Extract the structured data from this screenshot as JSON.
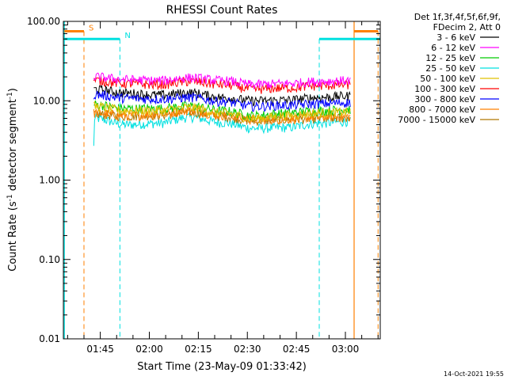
{
  "chart_data": {
    "type": "line",
    "title": "RHESSI Count Rates",
    "xlabel": "Start Time (23-May-09 01:33:42)",
    "ylabel_main": "Count Rate (s",
    "ylabel_sup1": "-1",
    "ylabel_mid": " detector segment",
    "ylabel_sup2": "-1",
    "ylabel_end": ")",
    "y_scale": "log",
    "ylim": [
      0.01,
      100
    ],
    "xlim": [
      "01:33:42",
      "03:10:40"
    ],
    "x_ticks": [
      "01:45",
      "02:00",
      "02:15",
      "02:30",
      "02:45",
      "03:00"
    ],
    "y_ticks": [
      "0.01",
      "0.10",
      "1.00",
      "10.00",
      "100.00"
    ],
    "legend_header": [
      "Det 1f,3f,4f,5f,6f,9f,",
      "FDecim 2, Att 0"
    ],
    "data_start": "01:43:00",
    "data_end": "03:01:30",
    "series": [
      {
        "name": "3 - 6 keV",
        "color": "#000000",
        "values": [
          14.0,
          12.5,
          11.8,
          12.6,
          11.0,
          10.0,
          10.2,
          11.0,
          11.5
        ]
      },
      {
        "name": "6 - 12 keV",
        "color": "#ff00ff",
        "values": [
          20.0,
          18.5,
          18.0,
          19.5,
          18.0,
          16.0,
          16.5,
          17.5,
          18.0
        ]
      },
      {
        "name": "12 - 25 keV",
        "color": "#00cc00",
        "values": [
          9.0,
          8.0,
          8.0,
          8.6,
          7.5,
          6.5,
          7.0,
          7.5,
          7.8
        ]
      },
      {
        "name": "25 - 50 keV",
        "color": "#00e0e0",
        "values": [
          6.0,
          5.0,
          5.2,
          6.2,
          5.3,
          4.5,
          4.6,
          5.2,
          5.5
        ]
      },
      {
        "name": "50 - 100 keV",
        "color": "#e0c000",
        "values": [
          8.5,
          7.5,
          7.5,
          8.2,
          7.0,
          6.0,
          6.5,
          7.0,
          7.2
        ]
      },
      {
        "name": "100 - 300 keV",
        "color": "#ff0000",
        "values": [
          18.0,
          16.5,
          16.0,
          17.5,
          16.0,
          14.0,
          14.5,
          15.5,
          16.0
        ]
      },
      {
        "name": "300 - 800 keV",
        "color": "#0000ff",
        "values": [
          12.0,
          10.8,
          10.5,
          11.0,
          9.8,
          8.5,
          8.8,
          9.2,
          9.5
        ]
      },
      {
        "name": "800 - 7000 keV",
        "color": "#ff8000",
        "values": [
          7.0,
          6.5,
          6.8,
          7.5,
          6.6,
          5.8,
          5.9,
          6.2,
          6.3
        ]
      },
      {
        "name": "7000 - 15000 keV",
        "color": "#b07800",
        "values": [
          6.8,
          6.4,
          6.6,
          7.2,
          6.4,
          5.6,
          5.8,
          6.0,
          6.1
        ]
      }
    ],
    "annotations": [
      {
        "label": "S",
        "color": "#ff8000",
        "level": 75,
        "bar_start": "01:34:00",
        "bar_end": "01:40:00",
        "marker": "01:40:00"
      },
      {
        "label": "N",
        "color": "#00e0e0",
        "level": 60,
        "bar_start": "01:34:00",
        "bar_end": "01:51:00",
        "marker": "01:51:00"
      },
      {
        "label": "",
        "color": "#00e0e0",
        "level": 60,
        "bar_start": "02:52:00",
        "bar_end": "03:10:40",
        "marker": "02:52:00"
      },
      {
        "label": "",
        "color": "#ff8000",
        "level": 75,
        "bar_start": "03:02:40",
        "bar_end": "03:10:00",
        "marker": "03:10:00"
      }
    ],
    "vlines": [
      {
        "time": "01:34:00",
        "color": "#00e0e0",
        "style": "solid"
      },
      {
        "time": "03:02:40",
        "color": "#ff8000",
        "style": "solid"
      }
    ],
    "footer_date": "14-Oct-2021 19:55"
  }
}
